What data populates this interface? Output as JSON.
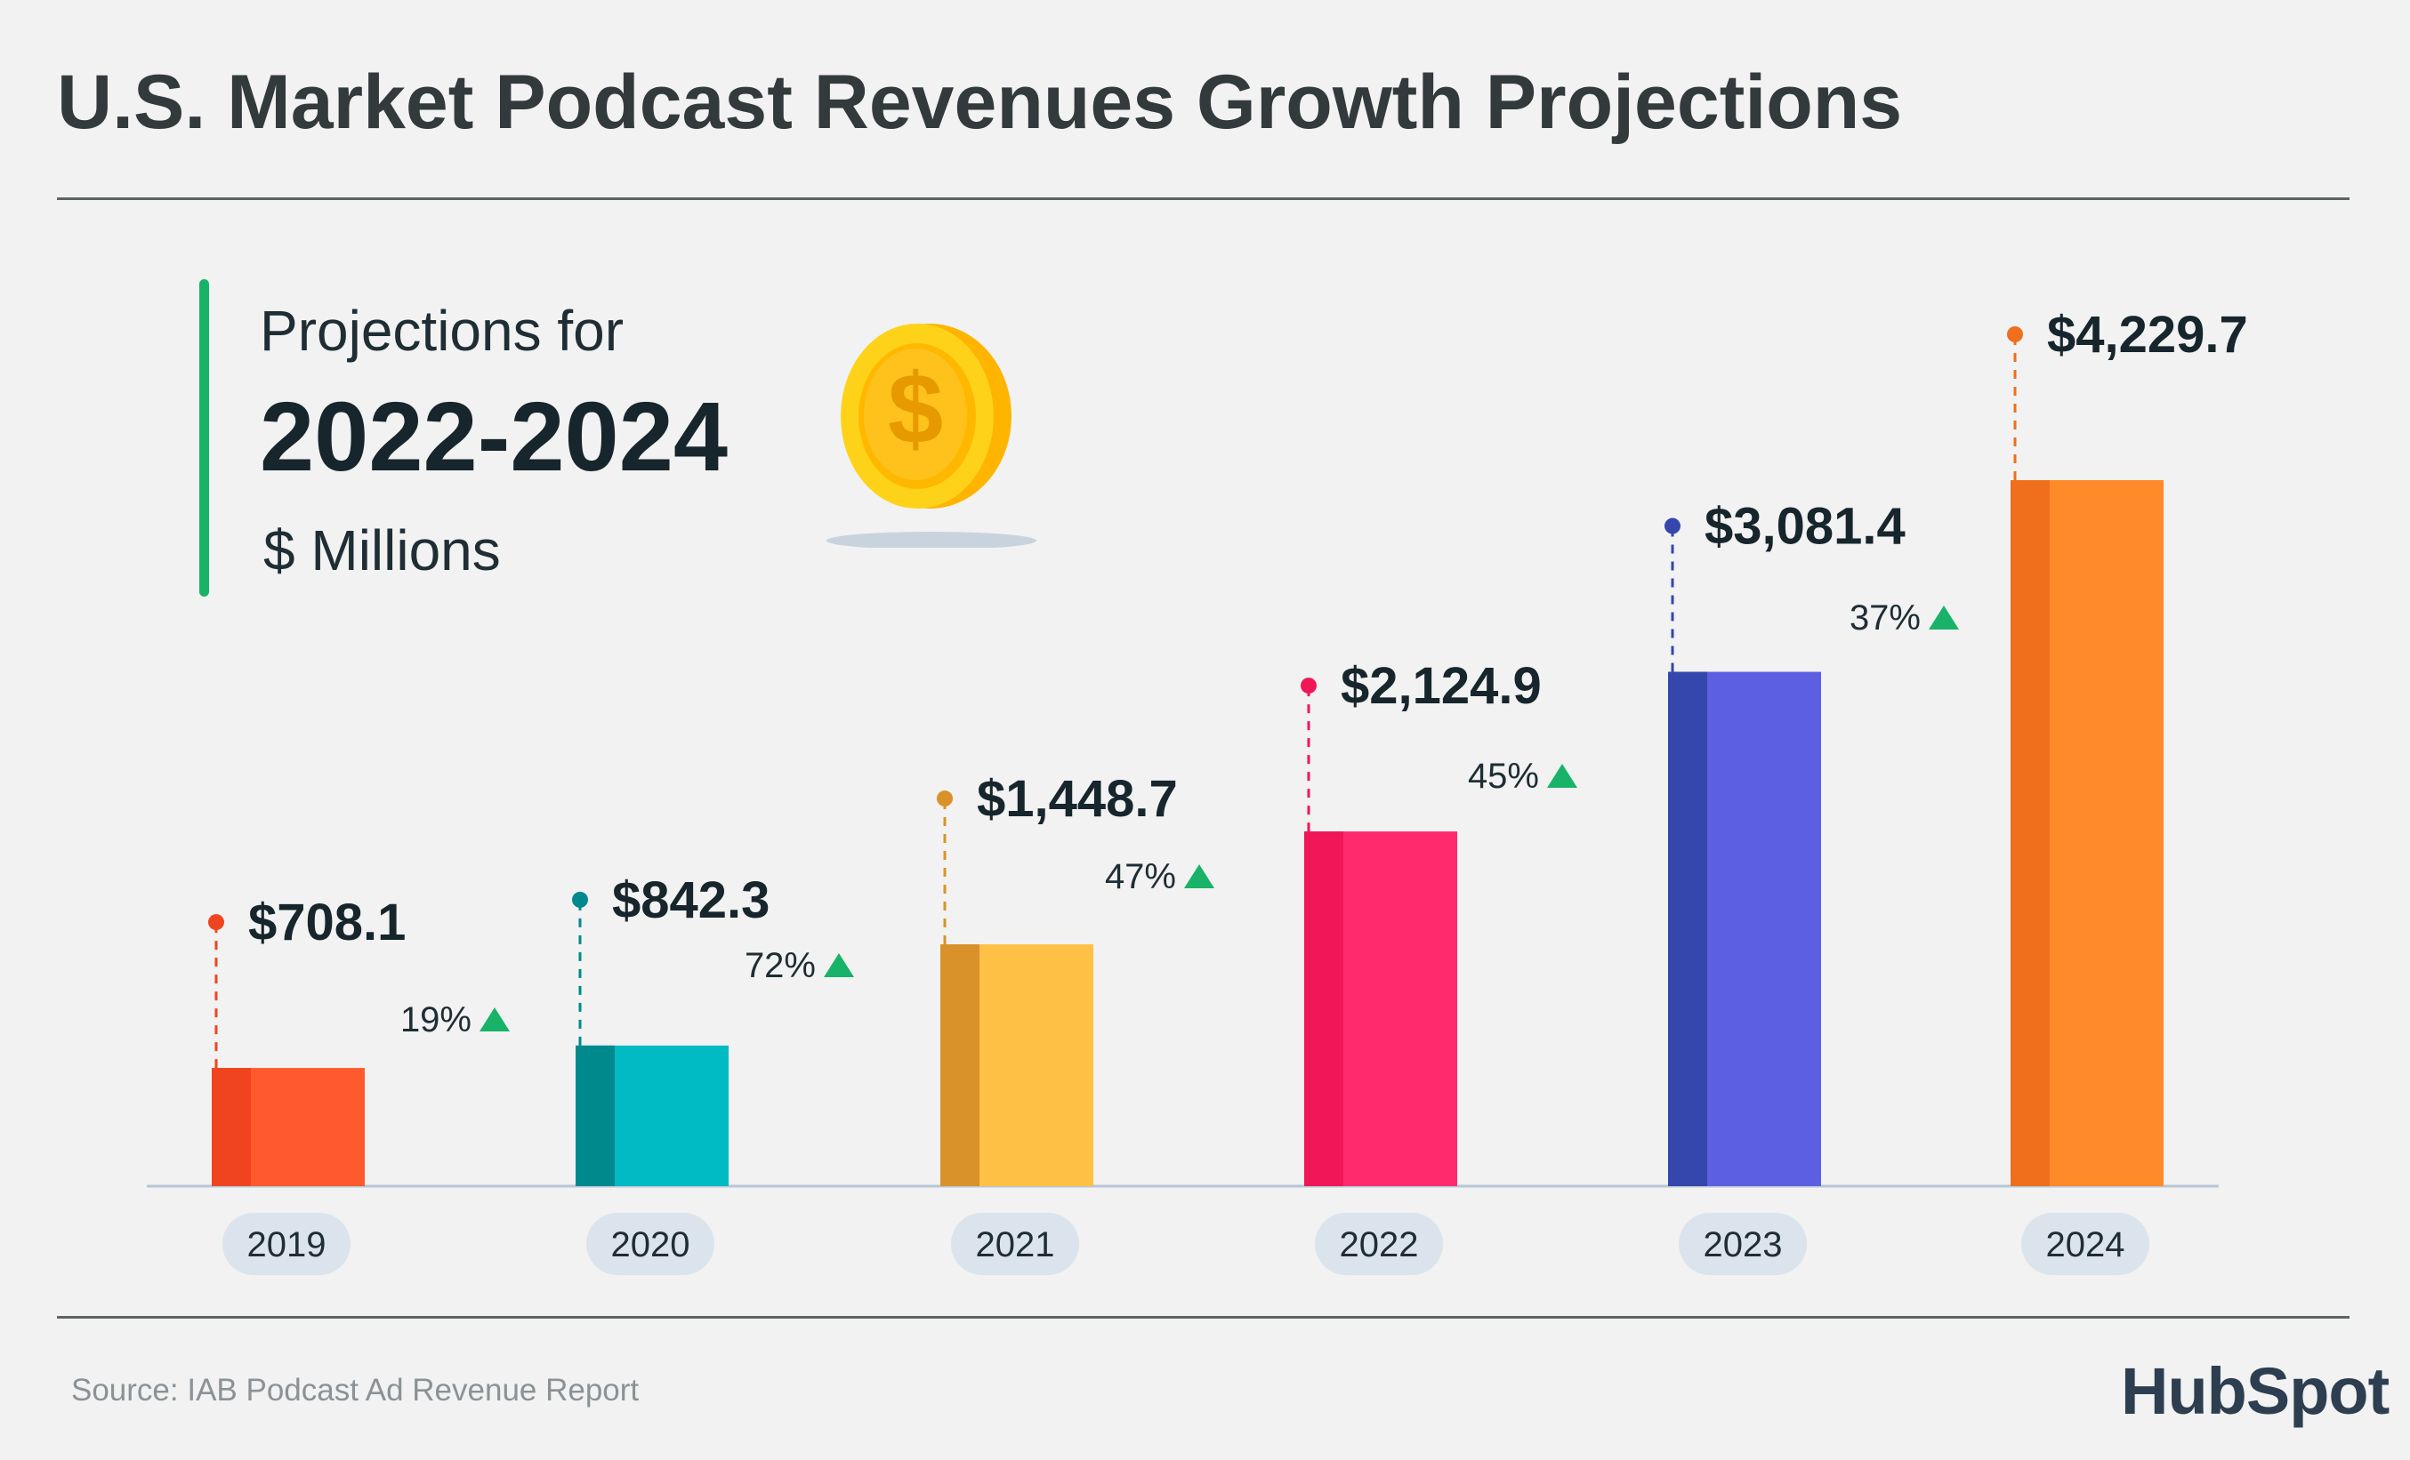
{
  "title": "U.S. Market Podcast Revenues Growth Projections",
  "projection": {
    "line1": "Projections for",
    "line2": "2022-2024",
    "line3": "$ Millions"
  },
  "coin": {
    "icon": "dollar-coin-icon",
    "symbol": "$"
  },
  "source": "Source: IAB Podcast Ad Revenue Report",
  "logo": "HubSpot",
  "colors": {
    "background": "#f1f2f1",
    "accent_bar": "#18b368",
    "growth_arrow": "#18b368",
    "axis": "#b8c6d6",
    "year_pill": "#dbe4ec"
  },
  "chart_data": {
    "type": "bar",
    "categories": [
      "2019",
      "2020",
      "2021",
      "2022",
      "2023",
      "2024"
    ],
    "values": [
      708.1,
      842.3,
      1448.7,
      2124.9,
      3081.4,
      4229.7
    ],
    "value_labels": [
      "$708.1",
      "$842.3",
      "$1,448.7",
      "$2,124.9",
      "$3,081.4",
      "$4,229.7"
    ],
    "growth_labels": [
      "19%",
      "72%",
      "47%",
      "45%",
      "37%"
    ],
    "bar_colors": [
      {
        "main": "#ff5a2e",
        "shade": "#f04420",
        "dot": "#f04420"
      },
      {
        "main": "#00bac4",
        "shade": "#00898d",
        "dot": "#00898d"
      },
      {
        "main": "#ffc046",
        "shade": "#d9922a",
        "dot": "#d9922a"
      },
      {
        "main": "#ff2a6e",
        "shade": "#f01757",
        "dot": "#f01757"
      },
      {
        "main": "#5d5fe2",
        "shade": "#3546ad",
        "dot": "#3546ad"
      },
      {
        "main": "#ff8a2a",
        "shade": "#ef6f1c",
        "dot": "#ef6f1c"
      }
    ],
    "ylim": [
      0,
      4500
    ],
    "title": "",
    "xlabel": "",
    "ylabel": "$ Millions"
  }
}
